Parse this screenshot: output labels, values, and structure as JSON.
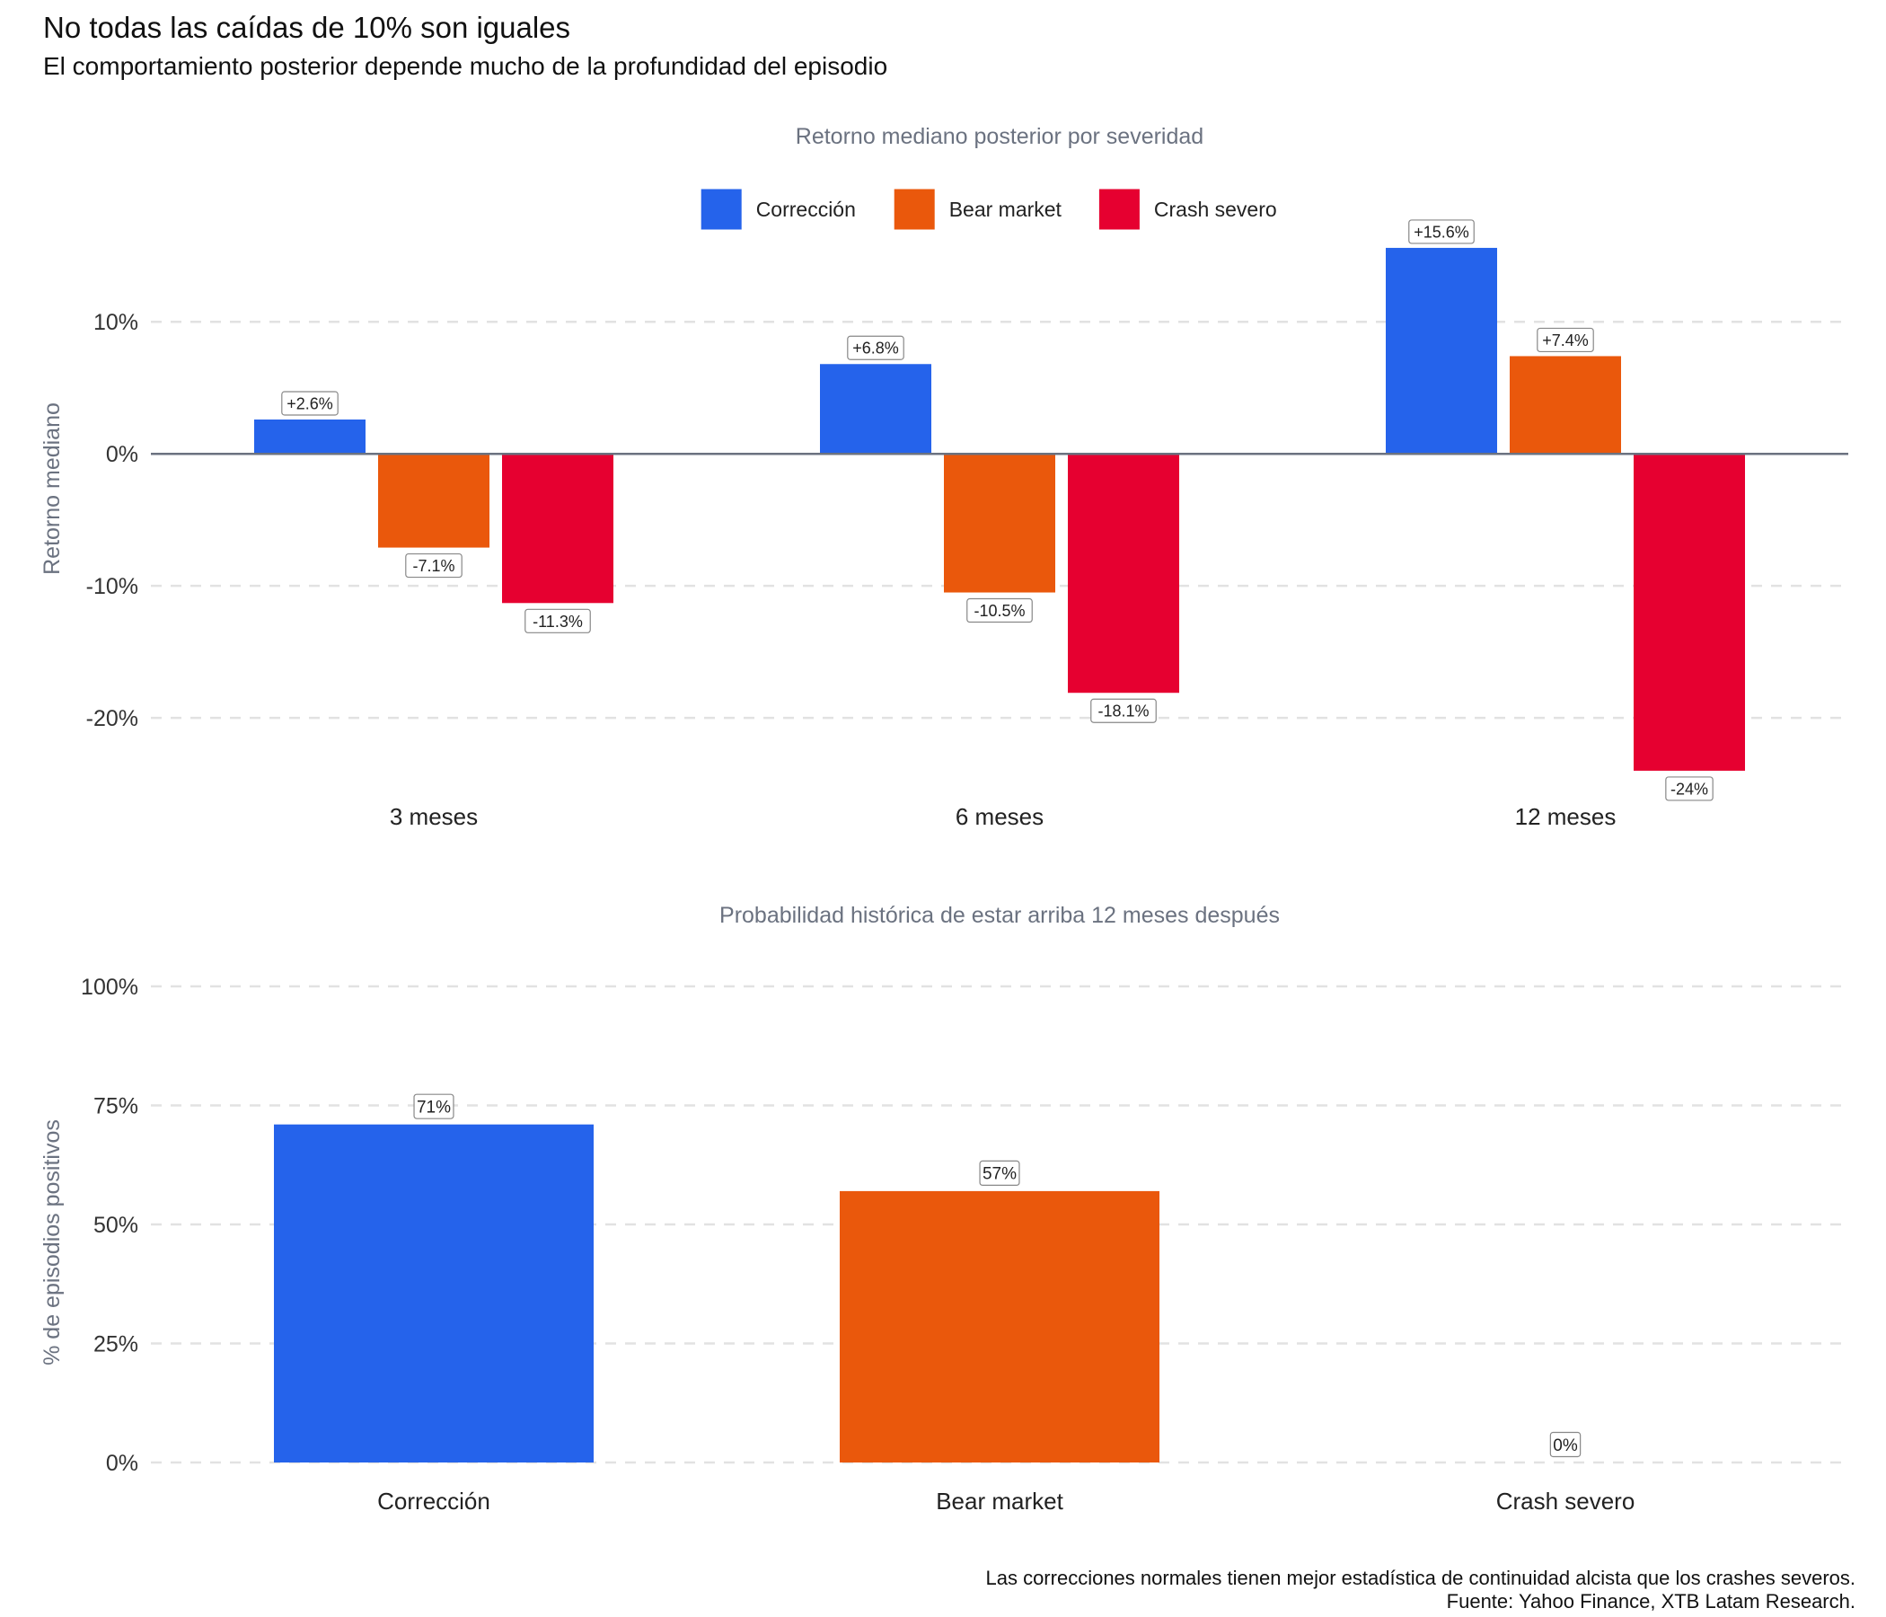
{
  "title": "No todas las caídas de 10% son iguales",
  "subtitle": "El comportamiento posterior depende mucho de la profundidad del episodio",
  "caption": [
    "Las correcciones normales tienen mejor estadística de continuidad alcista que los crashes severos.",
    "Fuente: Yahoo Finance, XTB Latam Research."
  ],
  "colors": {
    "Corrección": "#2563EB",
    "Bear market": "#EA580C",
    "Crash severo": "#E60030"
  },
  "chart_data": [
    {
      "type": "bar",
      "title": "Retorno mediano posterior por severidad",
      "xlabel": "",
      "ylabel": "Retorno mediano",
      "categories": [
        "3 meses",
        "6 meses",
        "12 meses"
      ],
      "series": [
        {
          "name": "Corrección",
          "values": [
            2.6,
            6.8,
            15.6
          ],
          "labels": [
            "+2.6%",
            "+6.8%",
            "+15.6%"
          ]
        },
        {
          "name": "Bear market",
          "values": [
            -7.1,
            -10.5,
            7.4
          ],
          "labels": [
            "-7.1%",
            "-10.5%",
            "+7.4%"
          ]
        },
        {
          "name": "Crash severo",
          "values": [
            -11.3,
            -18.1,
            -24
          ],
          "labels": [
            "-11.3%",
            "-18.1%",
            "-24%"
          ]
        }
      ],
      "yticks": [
        10,
        0,
        -10,
        -20
      ],
      "ytick_labels": [
        "10%",
        "0%",
        "-10%",
        "-20%"
      ],
      "ylim": [
        -25.5,
        17.5
      ],
      "legend": "top",
      "grid": "horizontal dashed"
    },
    {
      "type": "bar",
      "title": "Probabilidad histórica de estar arriba 12 meses después",
      "xlabel": "",
      "ylabel": "% de episodios positivos",
      "categories": [
        "Corrección",
        "Bear market",
        "Crash severo"
      ],
      "values": [
        71,
        57,
        0
      ],
      "labels": [
        "71%",
        "57%",
        "0%"
      ],
      "yticks": [
        0,
        25,
        50,
        75,
        100
      ],
      "ytick_labels": [
        "0%",
        "25%",
        "50%",
        "75%",
        "100%"
      ],
      "ylim": [
        0,
        100
      ],
      "grid": "horizontal dashed"
    }
  ]
}
